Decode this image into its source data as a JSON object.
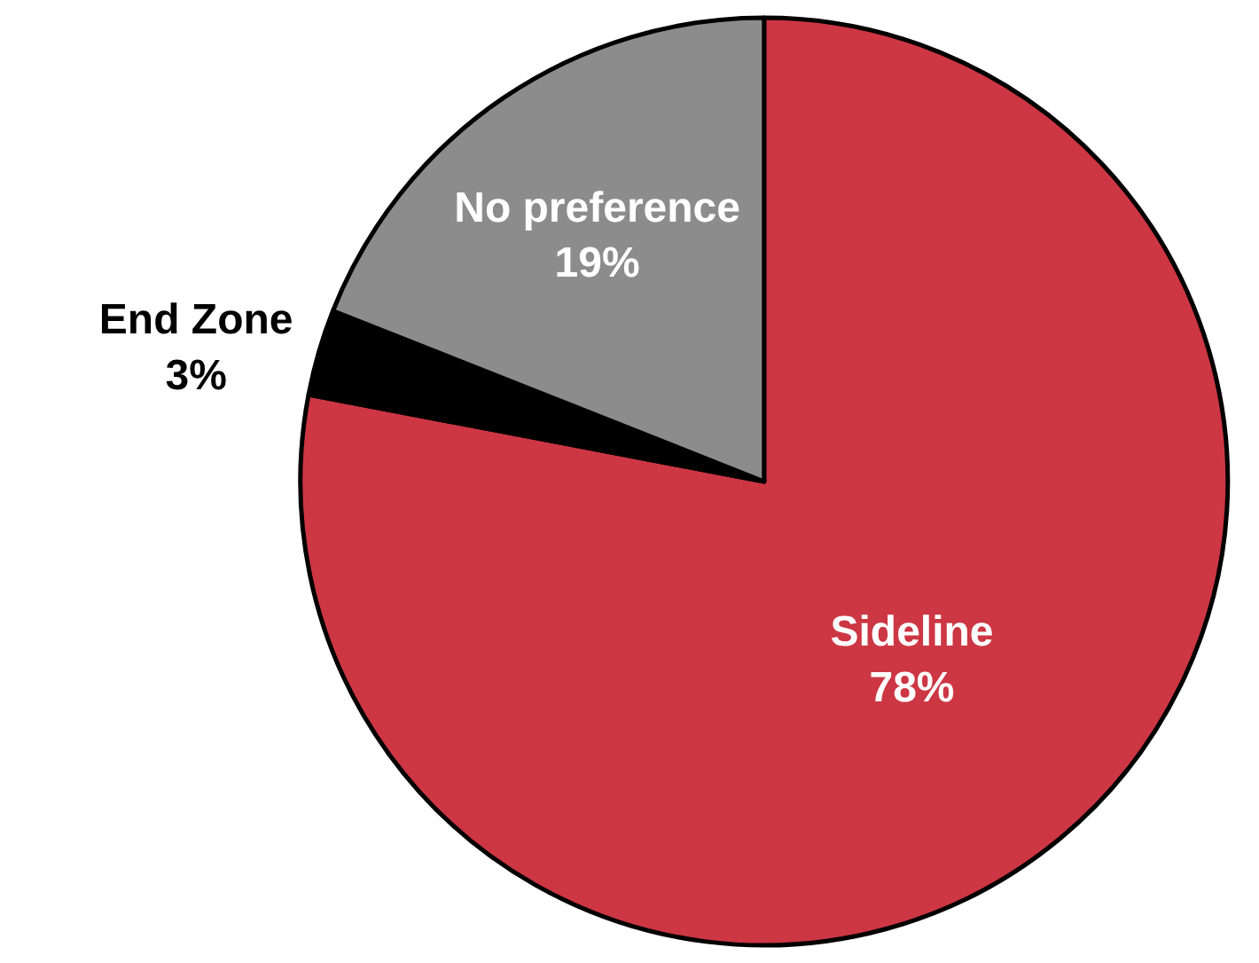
{
  "chart_data": {
    "type": "pie",
    "categories": [
      "Sideline",
      "End Zone",
      "No preference"
    ],
    "values": [
      78,
      3,
      19
    ],
    "value_labels": [
      "78%",
      "3%",
      "19%"
    ],
    "colors": [
      "#cd3643",
      "#000000",
      "#8c8c8c"
    ]
  }
}
